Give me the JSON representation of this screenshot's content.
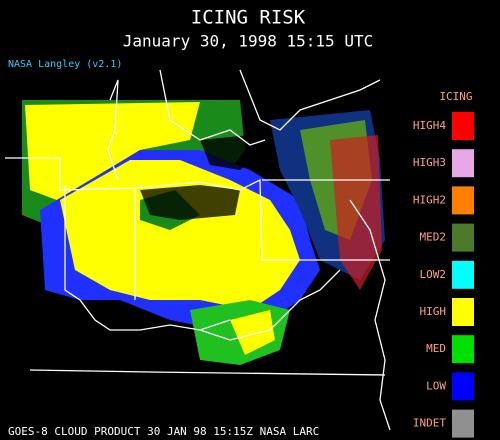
{
  "header": {
    "title": "ICING RISK",
    "subtitle": "January 30, 1998 15:15 UTC",
    "source": "NASA Langley (v2.1)"
  },
  "legend": {
    "title": "ICING",
    "items": [
      {
        "label": "HIGH4",
        "color": "#ff0000"
      },
      {
        "label": "HIGH3",
        "color": "#e8a8e8"
      },
      {
        "label": "HIGH2",
        "color": "#ff8000"
      },
      {
        "label": "MED2",
        "color": "#4a7a2a"
      },
      {
        "label": "LOW2",
        "color": "#00ffff"
      },
      {
        "label": "HIGH",
        "color": "#ffff00"
      },
      {
        "label": "MED",
        "color": "#00e000"
      },
      {
        "label": "LOW",
        "color": "#0000ff"
      },
      {
        "label": "INDET",
        "color": "#909090"
      }
    ]
  },
  "footer": {
    "text": "GOES-8 CLOUD PRODUCT   30 JAN 98 15:15Z NASA LARC"
  }
}
